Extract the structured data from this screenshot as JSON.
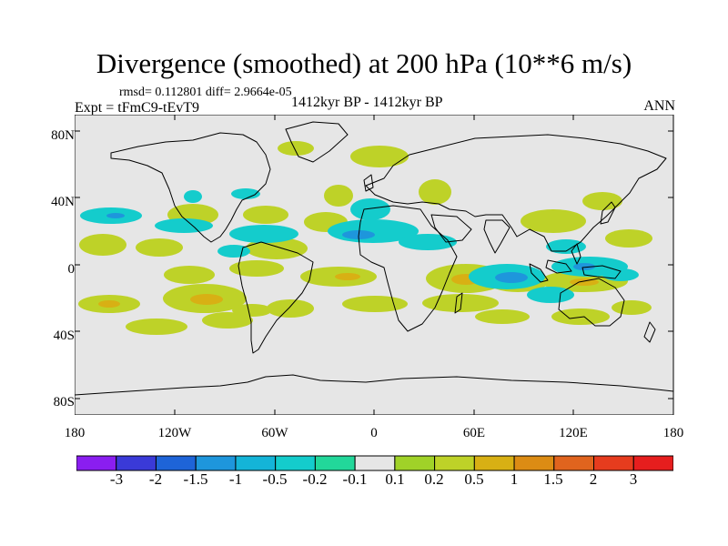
{
  "title": "Divergence (smoothed) at 200 hPa (10**6 m/s)",
  "stats_line": "rmsd= 0.112801 diff= 2.9664e-05",
  "experiment": "Expt = tFmC9-tEvT9",
  "period": "1412kyr BP - 1412kyr BP",
  "season": "ANN",
  "axes": {
    "lat_labels": [
      "80N",
      "40N",
      "0",
      "40S",
      "80S"
    ],
    "lon_labels": [
      "180",
      "120W",
      "60W",
      "0",
      "60E",
      "120E",
      "180"
    ]
  },
  "colorbar": {
    "labels": [
      "-3",
      "-2",
      "-1.5",
      "-1",
      "-0.5",
      "-0.2",
      "-0.1",
      "0.1",
      "0.2",
      "0.5",
      "1",
      "1.5",
      "2",
      "3"
    ],
    "colors": [
      "#8a1ef0",
      "#3a3ad8",
      "#1e64d8",
      "#1e96dc",
      "#14b4d8",
      "#14cccc",
      "#22d79a",
      "#e6e6e6",
      "#a0d228",
      "#bed228",
      "#d8b014",
      "#dc8c14",
      "#e0641e",
      "#e63c1e",
      "#e61e1e"
    ]
  },
  "legend_colors": {
    "neg_strong": "#1e96dc",
    "neg": "#14cccc",
    "neg_weak": "#22d79a",
    "pos_weak": "#a0d228",
    "pos": "#bed228",
    "pos_strong": "#d8b014",
    "background": "#e6e6e6"
  }
}
